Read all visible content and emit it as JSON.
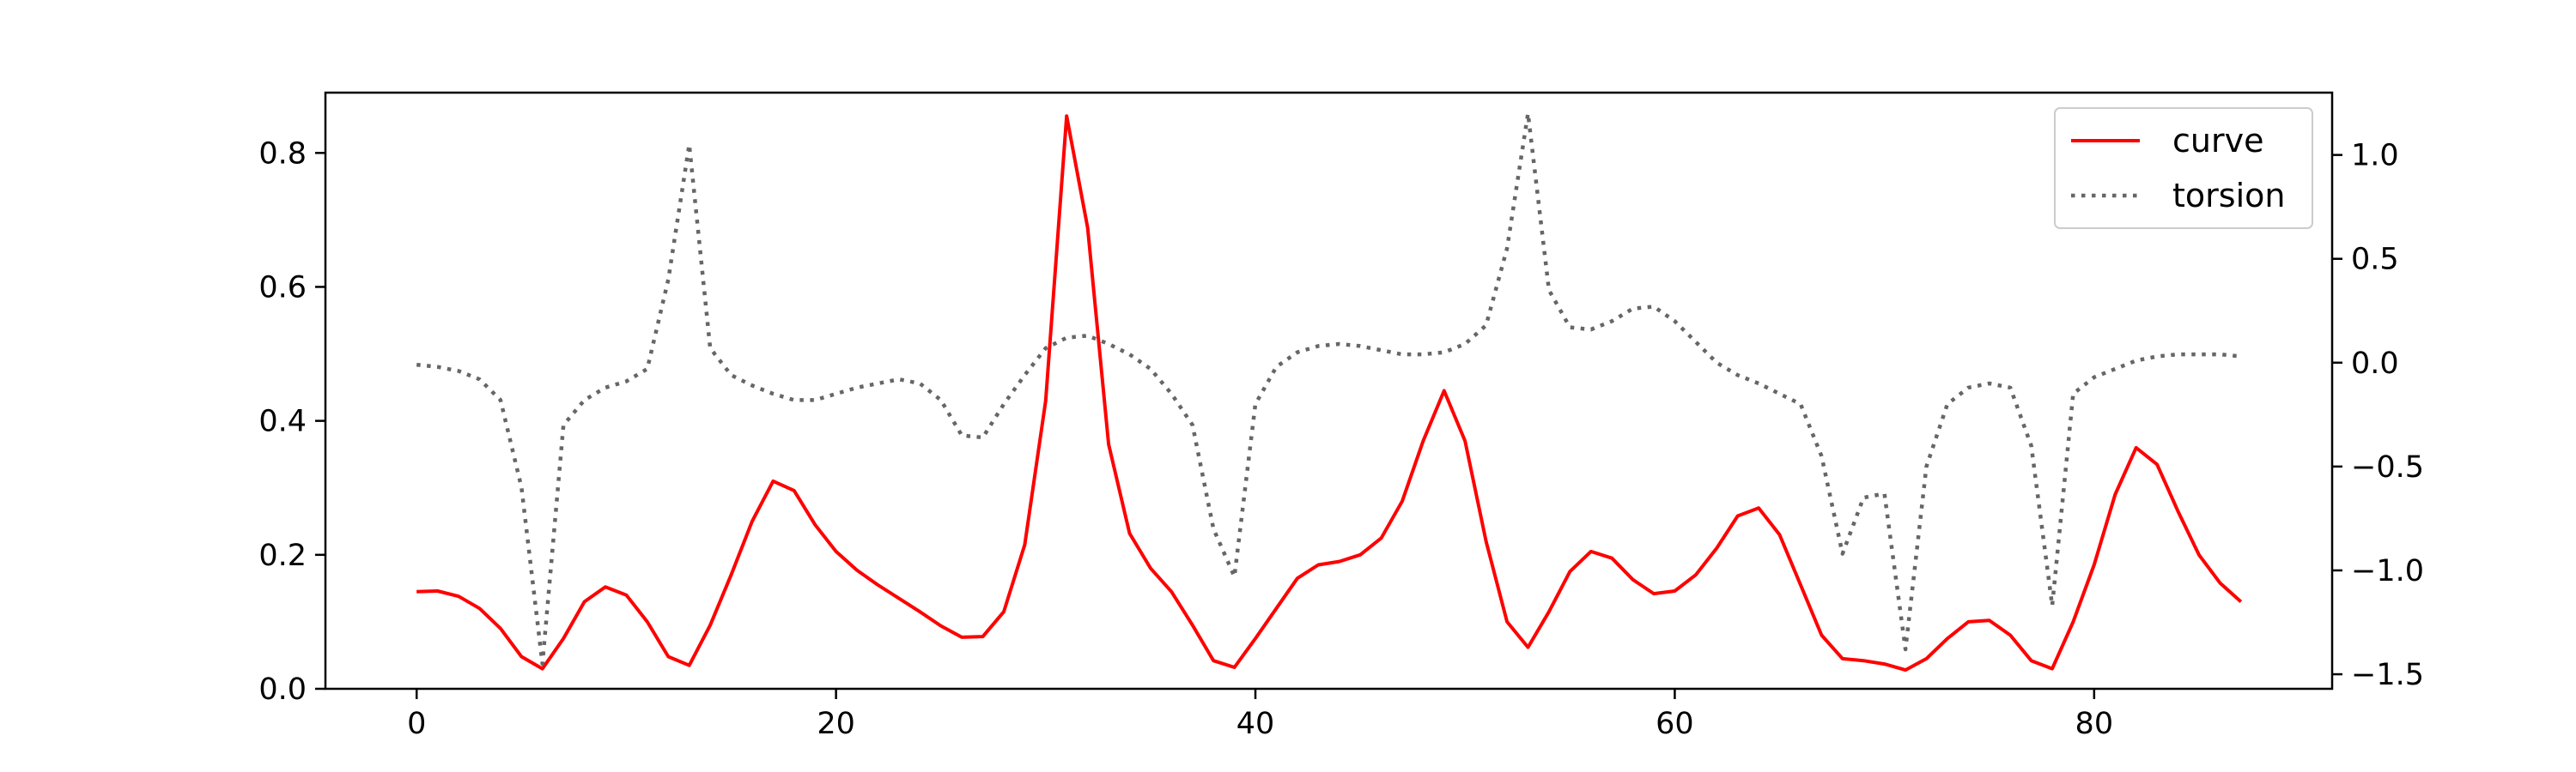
{
  "chart_data": {
    "type": "line",
    "title": "",
    "xlabel": "",
    "ylabel": "",
    "y2label": "",
    "xlim": [
      -4.35,
      91.35
    ],
    "ylim": [
      0.0,
      0.89
    ],
    "y2lim": [
      -1.57,
      1.3
    ],
    "x_ticks": [
      0,
      20,
      40,
      60,
      80
    ],
    "x_tick_labels": [
      "0",
      "20",
      "40",
      "60",
      "80"
    ],
    "y_ticks": [
      0.0,
      0.2,
      0.4,
      0.6,
      0.8
    ],
    "y_tick_labels": [
      "0.0",
      "0.2",
      "0.4",
      "0.6",
      "0.8"
    ],
    "y2_ticks": [
      1.0,
      0.5,
      0.0,
      -0.5,
      -1.0,
      -1.5
    ],
    "y2_tick_labels": [
      "1.0",
      "0.5",
      "0.0",
      "−0.5",
      "−1.0",
      "−1.5"
    ],
    "grid": false,
    "legend_position": "top-right",
    "series": [
      {
        "name": "curve",
        "axis": "left",
        "color": "#ff0000",
        "style": "solid",
        "x": [
          0,
          1,
          2,
          3,
          4,
          5,
          6,
          7,
          8,
          9,
          10,
          11,
          12,
          13,
          14,
          15,
          16,
          17,
          18,
          19,
          20,
          21,
          22,
          23,
          24,
          25,
          26,
          27,
          28,
          29,
          30,
          31,
          32,
          33,
          34,
          35,
          36,
          37,
          38,
          39,
          40,
          41,
          42,
          43,
          44,
          45,
          46,
          47,
          48,
          49,
          50,
          51,
          52,
          53,
          54,
          55,
          56,
          57,
          58,
          59,
          60,
          61,
          62,
          63,
          64,
          65,
          66,
          67,
          68,
          69,
          70,
          71,
          72,
          73,
          74,
          75,
          76,
          77,
          78,
          79,
          80,
          81,
          82,
          83,
          84,
          85,
          86,
          87
        ],
        "values": [
          0.145,
          0.146,
          0.138,
          0.12,
          0.09,
          0.048,
          0.03,
          0.075,
          0.13,
          0.152,
          0.14,
          0.1,
          0.048,
          0.035,
          0.095,
          0.17,
          0.25,
          0.31,
          0.296,
          0.245,
          0.205,
          0.177,
          0.155,
          0.135,
          0.115,
          0.094,
          0.077,
          0.078,
          0.115,
          0.215,
          0.43,
          0.855,
          0.688,
          0.365,
          0.232,
          0.18,
          0.145,
          0.095,
          0.042,
          0.032,
          0.075,
          0.12,
          0.165,
          0.185,
          0.19,
          0.2,
          0.225,
          0.28,
          0.37,
          0.445,
          0.37,
          0.22,
          0.1,
          0.062,
          0.115,
          0.175,
          0.205,
          0.195,
          0.163,
          0.142,
          0.146,
          0.17,
          0.21,
          0.258,
          0.27,
          0.23,
          0.155,
          0.08,
          0.045,
          0.042,
          0.037,
          0.028,
          0.045,
          0.075,
          0.1,
          0.102,
          0.08,
          0.042,
          0.03,
          0.1,
          0.185,
          0.29,
          0.36,
          0.335,
          0.265,
          0.2,
          0.158,
          0.13
        ]
      },
      {
        "name": "torsion",
        "axis": "right",
        "color": "#666666",
        "style": "dotted",
        "x": [
          0,
          1,
          2,
          3,
          4,
          5,
          6,
          7,
          8,
          9,
          10,
          11,
          12,
          13,
          14,
          15,
          16,
          17,
          18,
          19,
          20,
          21,
          22,
          23,
          24,
          25,
          26,
          27,
          28,
          29,
          30,
          31,
          32,
          33,
          34,
          35,
          36,
          37,
          38,
          39,
          40,
          41,
          42,
          43,
          44,
          45,
          46,
          47,
          48,
          49,
          50,
          51,
          52,
          53,
          54,
          55,
          56,
          57,
          58,
          59,
          60,
          61,
          62,
          63,
          64,
          65,
          66,
          67,
          68,
          69,
          70,
          71,
          72,
          73,
          74,
          75,
          76,
          77,
          78,
          79,
          80,
          81,
          82,
          83,
          84,
          85,
          86,
          87
        ],
        "values": [
          -0.01,
          -0.02,
          -0.04,
          -0.08,
          -0.18,
          -0.6,
          -1.45,
          -0.3,
          -0.18,
          -0.12,
          -0.09,
          -0.03,
          0.4,
          1.05,
          0.07,
          -0.06,
          -0.11,
          -0.15,
          -0.18,
          -0.18,
          -0.15,
          -0.12,
          -0.1,
          -0.08,
          -0.1,
          -0.18,
          -0.35,
          -0.36,
          -0.2,
          -0.06,
          0.07,
          0.12,
          0.13,
          0.09,
          0.04,
          -0.03,
          -0.15,
          -0.3,
          -0.8,
          -1.03,
          -0.2,
          -0.02,
          0.05,
          0.08,
          0.09,
          0.08,
          0.06,
          0.04,
          0.04,
          0.05,
          0.09,
          0.18,
          0.55,
          1.2,
          0.35,
          0.17,
          0.16,
          0.2,
          0.26,
          0.27,
          0.2,
          0.1,
          0.0,
          -0.06,
          -0.1,
          -0.15,
          -0.2,
          -0.45,
          -0.92,
          -0.65,
          -0.63,
          -1.38,
          -0.5,
          -0.2,
          -0.12,
          -0.1,
          -0.12,
          -0.4,
          -1.17,
          -0.15,
          -0.07,
          -0.03,
          0.01,
          0.03,
          0.04,
          0.04,
          0.04,
          0.03
        ]
      }
    ]
  }
}
